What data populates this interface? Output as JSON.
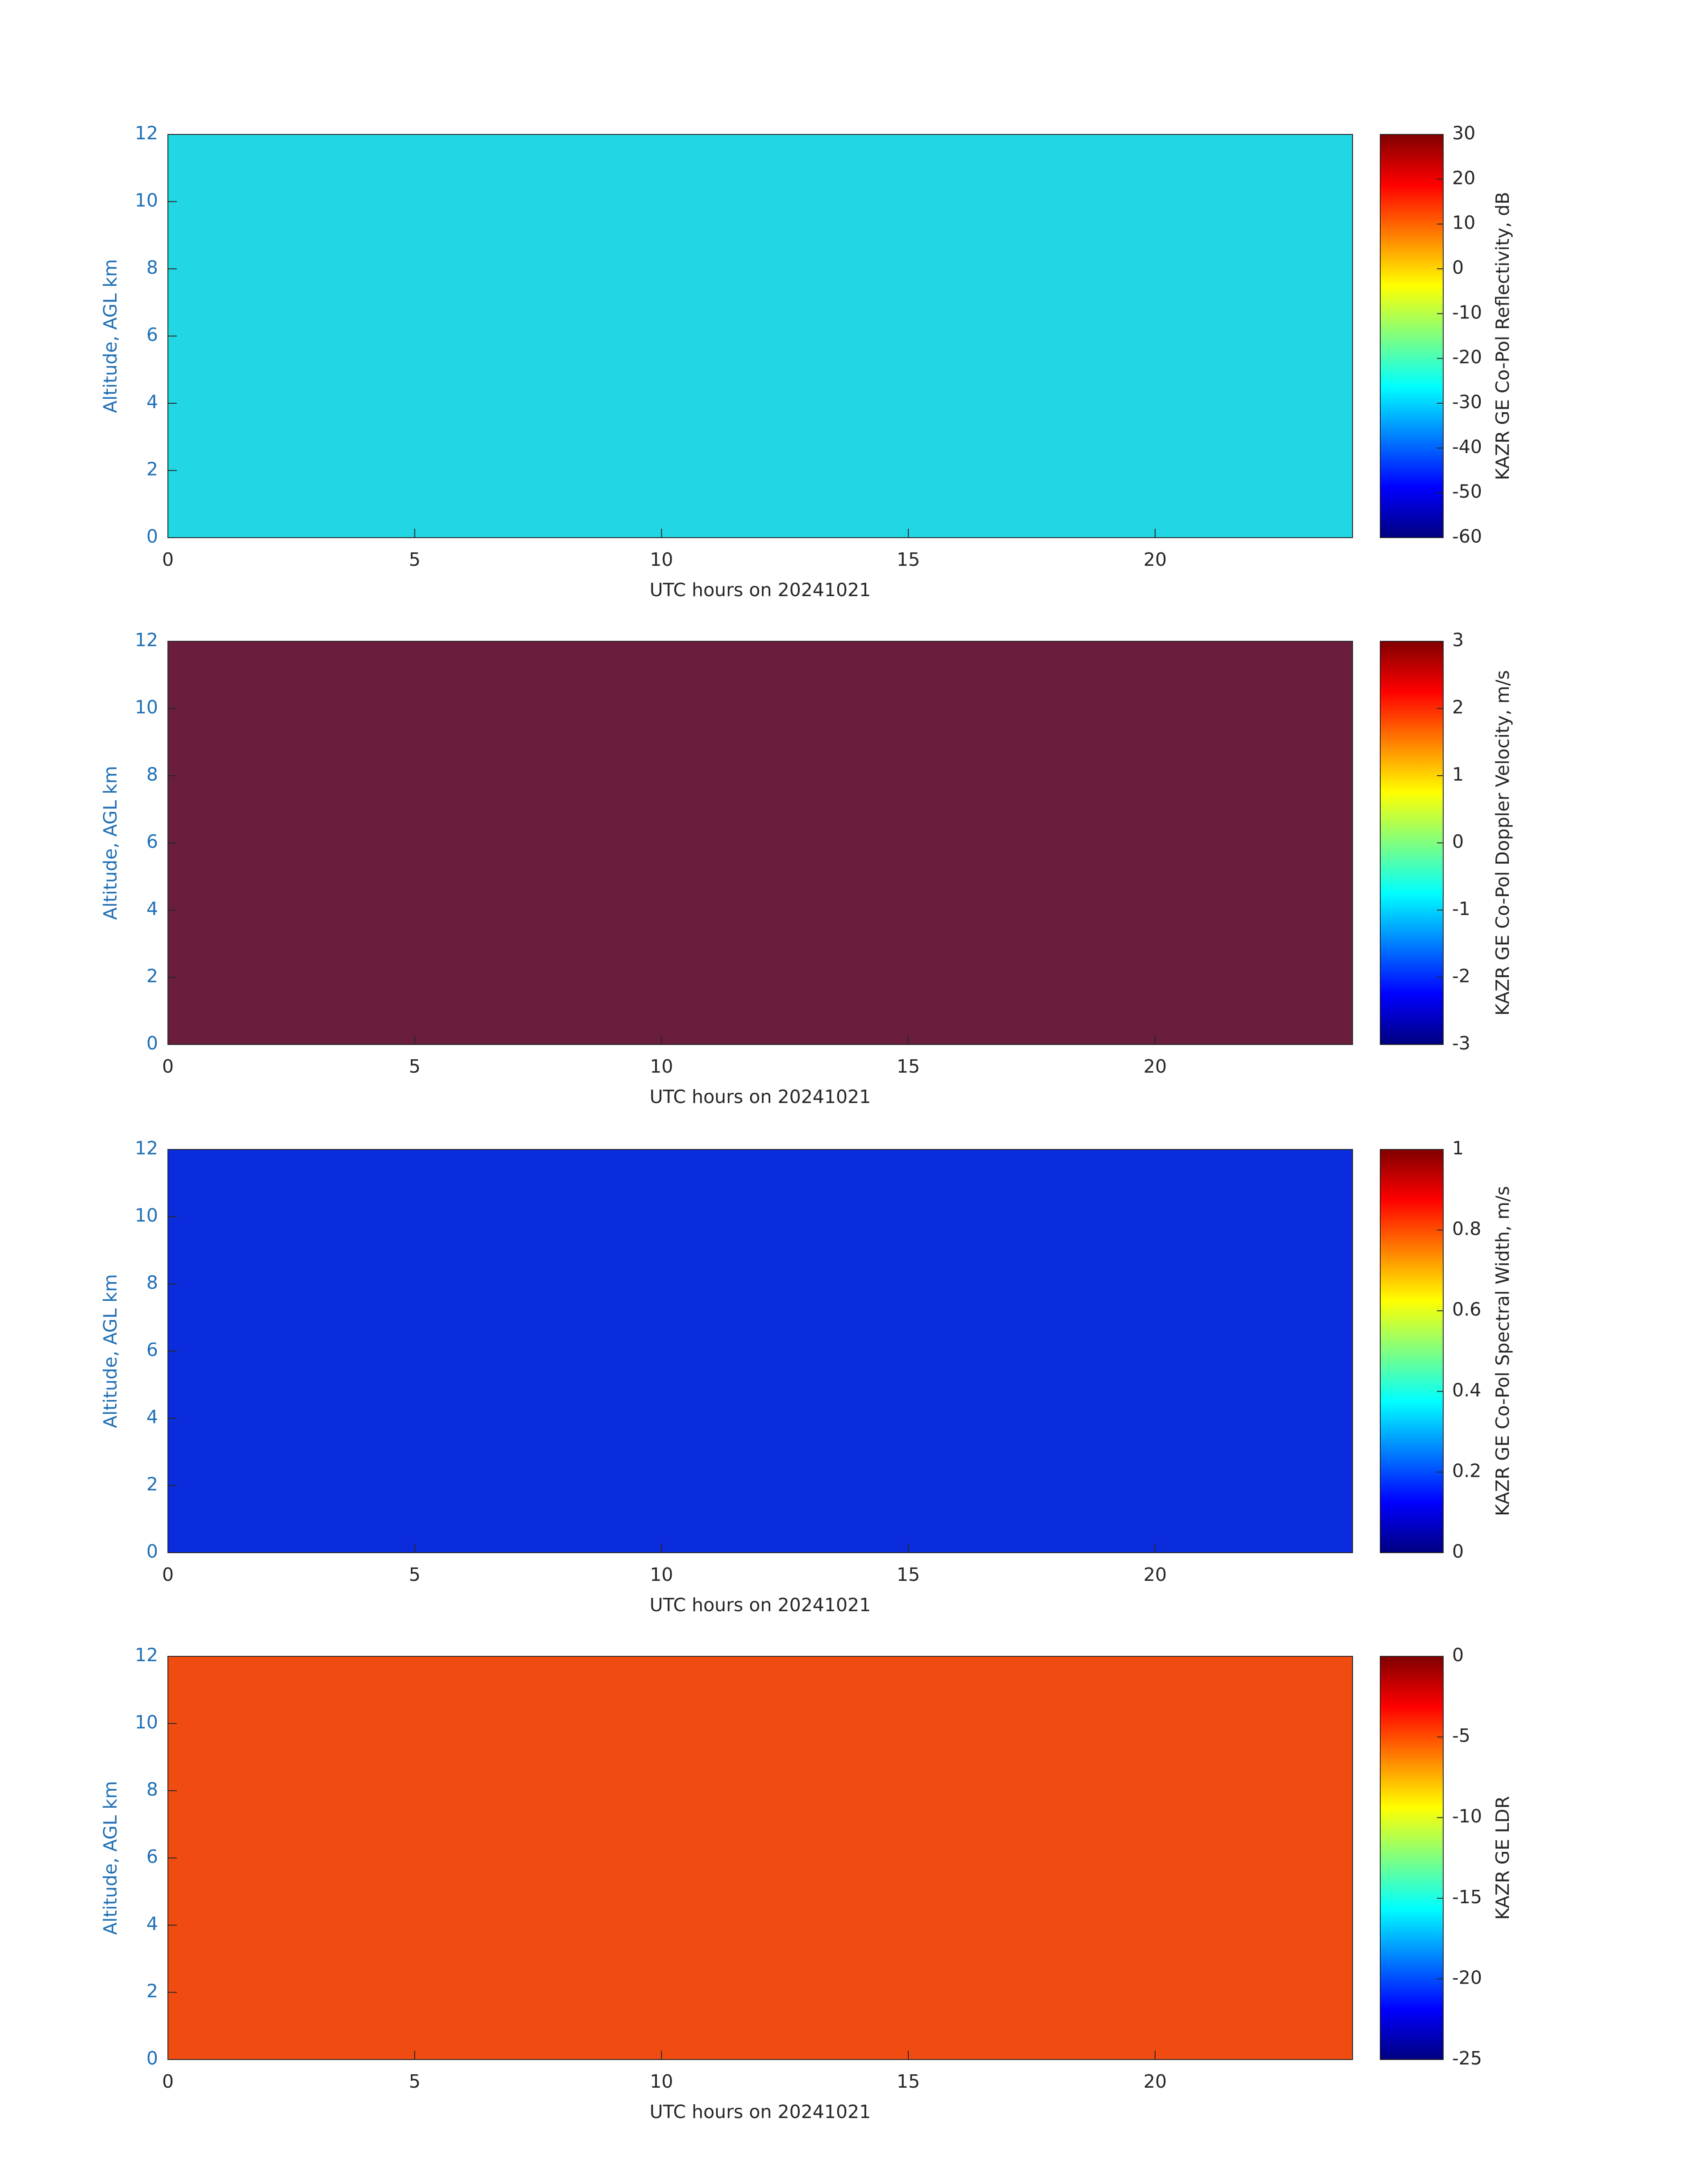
{
  "chart_data": [
    {
      "type": "heatmap",
      "xlabel": "UTC hours on 20241021",
      "ylabel": "Altitude, AGL km",
      "xlim": [
        0,
        24
      ],
      "xticks": [
        0,
        5,
        10,
        15,
        20
      ],
      "ylim": [
        0,
        12
      ],
      "yticks": [
        0,
        2,
        4,
        6,
        8,
        10,
        12
      ],
      "color": "#22d6e4",
      "colormap": "jet",
      "colorbar": {
        "label": "KAZR GE Co-Pol Reflectivity, dB",
        "lim": [
          -60,
          30
        ],
        "ticks": [
          -60,
          -50,
          -40,
          -30,
          -20,
          -10,
          0,
          10,
          20,
          30
        ]
      }
    },
    {
      "type": "heatmap",
      "xlabel": "UTC hours on 20241021",
      "ylabel": "Altitude, AGL km",
      "xlim": [
        0,
        24
      ],
      "xticks": [
        0,
        5,
        10,
        15,
        20
      ],
      "ylim": [
        0,
        12
      ],
      "yticks": [
        0,
        2,
        4,
        6,
        8,
        10,
        12
      ],
      "color": "#6b1d3e",
      "colormap": "jet",
      "colorbar": {
        "label": "KAZR GE Co-Pol Doppler Velocity, m/s",
        "lim": [
          -3,
          3
        ],
        "ticks": [
          -3,
          -2,
          -1,
          0,
          1,
          2,
          3
        ]
      }
    },
    {
      "type": "heatmap",
      "xlabel": "UTC hours on 20241021",
      "ylabel": "Altitude, AGL km",
      "xlim": [
        0,
        24
      ],
      "xticks": [
        0,
        5,
        10,
        15,
        20
      ],
      "ylim": [
        0,
        12
      ],
      "yticks": [
        0,
        2,
        4,
        6,
        8,
        10,
        12
      ],
      "color": "#0b2cdc",
      "colormap": "jet",
      "colorbar": {
        "label": "KAZR GE Co-Pol Spectral Width, m/s",
        "lim": [
          0,
          1
        ],
        "ticks": [
          0,
          0.2,
          0.4,
          0.6,
          0.8,
          1
        ]
      }
    },
    {
      "type": "heatmap",
      "xlabel": "UTC hours on 20241021",
      "ylabel": "Altitude, AGL km",
      "xlim": [
        0,
        24
      ],
      "xticks": [
        0,
        5,
        10,
        15,
        20
      ],
      "ylim": [
        0,
        12
      ],
      "yticks": [
        0,
        2,
        4,
        6,
        8,
        10,
        12
      ],
      "color": "#f04c12",
      "colormap": "jet",
      "colorbar": {
        "label": "KAZR GE LDR",
        "lim": [
          -25,
          0
        ],
        "ticks": [
          -25,
          -20,
          -15,
          -10,
          -5,
          0
        ]
      }
    }
  ]
}
